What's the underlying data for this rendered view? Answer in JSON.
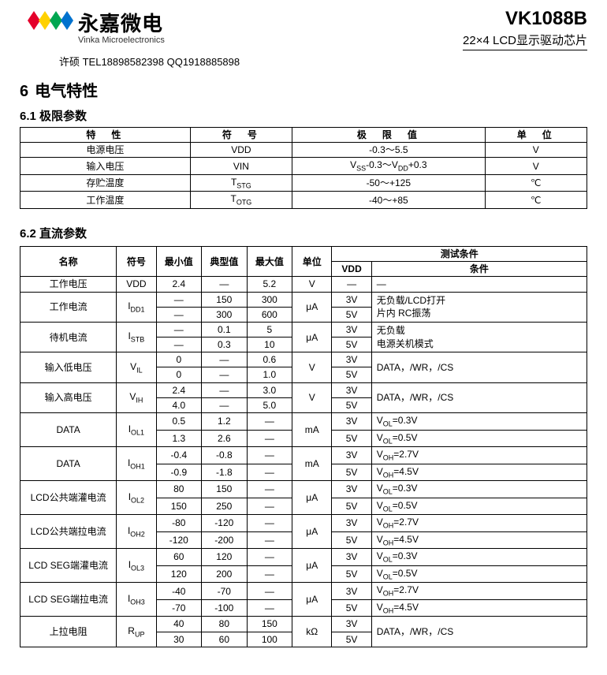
{
  "header": {
    "company_cn": "永嘉微电",
    "company_en": "Vinka Microelectronics",
    "part_number": "VK1088B",
    "part_desc": "22×4  LCD显示驱动芯片",
    "contact": "许硕 TEL18898582398  QQ1918885898",
    "logo_colors": [
      "#e4002b",
      "#ffd100",
      "#00a651",
      "#0072ce"
    ]
  },
  "section6": {
    "num": "6",
    "title": "电气特性"
  },
  "sec61": {
    "title": "6.1 极限参数",
    "headers": [
      "特　性",
      "符　号",
      "极　限　值",
      "单　位"
    ],
    "rows": [
      {
        "p": "电源电压",
        "s": "VDD",
        "v": "-0.3～5.5",
        "u": "V"
      },
      {
        "p": "输入电压",
        "s": "VIN",
        "v": "V<sub>SS</sub>-0.3～V<sub>DD</sub>+0.3",
        "u": "V"
      },
      {
        "p": "存贮温度",
        "s": "T<sub>STG</sub>",
        "v": "-50～+125",
        "u": "℃"
      },
      {
        "p": "工作温度",
        "s": "T<sub>OTG</sub>",
        "v": "-40～+85",
        "u": "℃"
      }
    ]
  },
  "sec62": {
    "title": "6.2 直流参数",
    "headers": {
      "name": "名称",
      "sym": "符号",
      "min": "最小值",
      "typ": "典型值",
      "max": "最大值",
      "unit": "单位",
      "cond_group": "测试条件",
      "vdd": "VDD",
      "cond": "条件"
    },
    "rows": [
      {
        "name": "工作电压",
        "sym": "VDD",
        "sub": [
          {
            "min": "2.4",
            "typ": "—",
            "max": "5.2",
            "vdd": "—",
            "cond": "—"
          }
        ],
        "unit": "V"
      },
      {
        "name": "工作电流",
        "sym": "I<sub>DD1</sub>",
        "sub": [
          {
            "min": "—",
            "typ": "150",
            "max": "300",
            "vdd": "3V"
          },
          {
            "min": "—",
            "typ": "300",
            "max": "600",
            "vdd": "5V"
          }
        ],
        "unit": "μA",
        "cond_merged": "无负载/LCD打开<br>片内 RC振荡"
      },
      {
        "name": "待机电流",
        "sym": "I<sub>STB</sub>",
        "sub": [
          {
            "min": "—",
            "typ": "0.1",
            "max": "5",
            "vdd": "3V"
          },
          {
            "min": "—",
            "typ": "0.3",
            "max": "10",
            "vdd": "5V"
          }
        ],
        "unit": "μA",
        "cond_merged": "无负载<br>电源关机模式"
      },
      {
        "name": "输入低电压",
        "sym": "V<sub>IL</sub>",
        "sub": [
          {
            "min": "0",
            "typ": "—",
            "max": "0.6",
            "vdd": "3V"
          },
          {
            "min": "0",
            "typ": "—",
            "max": "1.0",
            "vdd": "5V"
          }
        ],
        "unit": "V",
        "cond_merged": "DATA，/WR，/CS"
      },
      {
        "name": "输入高电压",
        "sym": "V<sub>IH</sub>",
        "sub": [
          {
            "min": "2.4",
            "typ": "—",
            "max": "3.0",
            "vdd": "3V"
          },
          {
            "min": "4.0",
            "typ": "—",
            "max": "5.0",
            "vdd": "5V"
          }
        ],
        "unit": "V",
        "cond_merged": "DATA，/WR，/CS"
      },
      {
        "name": "DATA",
        "sym": "I<sub>OL1</sub>",
        "sub": [
          {
            "min": "0.5",
            "typ": "1.2",
            "max": "—",
            "vdd": "3V",
            "cond": "V<sub>OL</sub>=0.3V"
          },
          {
            "min": "1.3",
            "typ": "2.6",
            "max": "—",
            "vdd": "5V",
            "cond": "V<sub>OL</sub>=0.5V"
          }
        ],
        "unit": "mA"
      },
      {
        "name": "DATA",
        "sym": "I<sub>OH1</sub>",
        "sub": [
          {
            "min": "-0.4",
            "typ": "-0.8",
            "max": "—",
            "vdd": "3V",
            "cond": "V<sub>OH</sub>=2.7V"
          },
          {
            "min": "-0.9",
            "typ": "-1.8",
            "max": "—",
            "vdd": "5V",
            "cond": "V<sub>OH</sub>=4.5V"
          }
        ],
        "unit": "mA"
      },
      {
        "name": "LCD公共端灌电流",
        "sym": "I<sub>OL2</sub>",
        "sub": [
          {
            "min": "80",
            "typ": "150",
            "max": "—",
            "vdd": "3V",
            "cond": "V<sub>OL</sub>=0.3V"
          },
          {
            "min": "150",
            "typ": "250",
            "max": "—",
            "vdd": "5V",
            "cond": "V<sub>OL</sub>=0.5V"
          }
        ],
        "unit": "μA"
      },
      {
        "name": "LCD公共端拉电流",
        "sym": "I<sub>OH2</sub>",
        "sub": [
          {
            "min": "-80",
            "typ": "-120",
            "max": "—",
            "vdd": "3V",
            "cond": "V<sub>OH</sub>=2.7V"
          },
          {
            "min": "-120",
            "typ": "-200",
            "max": "—",
            "vdd": "5V",
            "cond": "V<sub>OH</sub>=4.5V"
          }
        ],
        "unit": "μA"
      },
      {
        "name": "LCD SEG端灌电流",
        "sym": "I<sub>OL3</sub>",
        "sub": [
          {
            "min": "60",
            "typ": "120",
            "max": "—",
            "vdd": "3V",
            "cond": "V<sub>OL</sub>=0.3V"
          },
          {
            "min": "120",
            "typ": "200",
            "max": "—",
            "vdd": "5V",
            "cond": "V<sub>OL</sub>=0.5V"
          }
        ],
        "unit": "μA"
      },
      {
        "name": "LCD SEG端拉电流",
        "sym": "I<sub>OH3</sub>",
        "sub": [
          {
            "min": "-40",
            "typ": "-70",
            "max": "—",
            "vdd": "3V",
            "cond": "V<sub>OH</sub>=2.7V"
          },
          {
            "min": "-70",
            "typ": "-100",
            "max": "—",
            "vdd": "5V",
            "cond": "V<sub>OH</sub>=4.5V"
          }
        ],
        "unit": "μA"
      },
      {
        "name": "上拉电阻",
        "sym": "R<sub>UP</sub>",
        "sub": [
          {
            "min": "40",
            "typ": "80",
            "max": "150",
            "vdd": "3V"
          },
          {
            "min": "30",
            "typ": "60",
            "max": "100",
            "vdd": "5V"
          }
        ],
        "unit": "kΩ",
        "cond_merged": "DATA，/WR，/CS"
      }
    ]
  }
}
